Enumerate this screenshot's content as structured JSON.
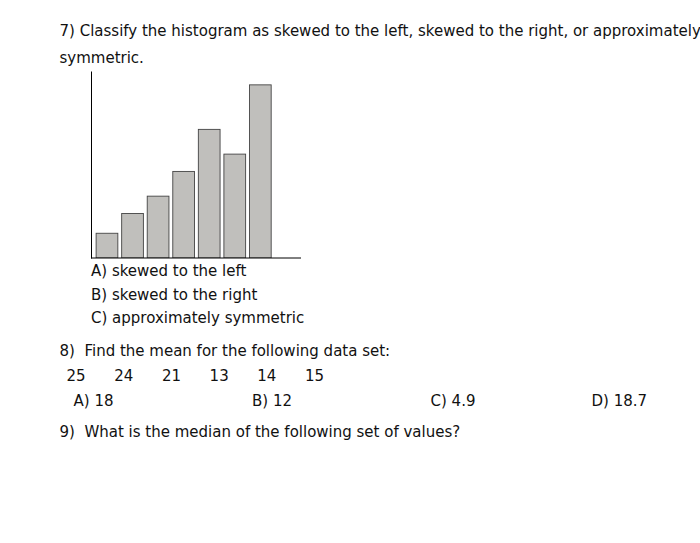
{
  "chart_data": {
    "type": "bar",
    "title": [
      "7) Classify the histogram as skewed to the left, skewed to the right, or approximately",
      "symmetric."
    ],
    "categories": [
      null,
      null,
      null,
      null,
      null,
      null,
      null
    ],
    "values": [
      1,
      1.8,
      2.5,
      3.5,
      5.2,
      4.2,
      7.0
    ],
    "color": "#c0bfbc",
    "ylim": [
      0,
      7.56
    ],
    "tick_labels": false,
    "annotations": [
      "A) skewed to the left",
      "B) skewed to the right",
      "C) approximately symmetric",
      "8)  Find the mean for the following data set:",
      "25      24      21      13      14      15",
      "A) 18",
      "B) 12",
      "C) 4.9",
      "D) 18.7",
      "9)  What is the median of the following set of values?"
    ]
  }
}
